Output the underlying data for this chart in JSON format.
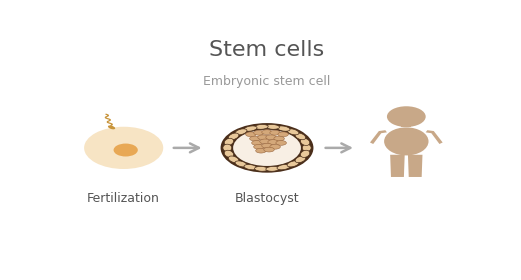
{
  "title": "Stem cells",
  "subtitle": "Embryonic stem cell",
  "label_fertilization": "Fertilization",
  "label_blastocyst": "Blastocyst",
  "bg_color": "#ffffff",
  "title_color": "#555555",
  "subtitle_color": "#999999",
  "label_color": "#555555",
  "egg_color": "#f7e4c4",
  "nucleus_color": "#e8a855",
  "sperm_color": "#c8943a",
  "blasto_outer_color": "#4a2e1a",
  "blasto_ring_color": "#e8c89a",
  "blasto_ring_border": "#4a2e1a",
  "blasto_inner_color": "#f8efe4",
  "blasto_icm_color": "#d4a87a",
  "blasto_icm_border": "#9a6840",
  "arrow_color": "#aaaaaa",
  "human_color": "#c8a888",
  "title_fontsize": 16,
  "subtitle_fontsize": 9,
  "label_fontsize": 9
}
